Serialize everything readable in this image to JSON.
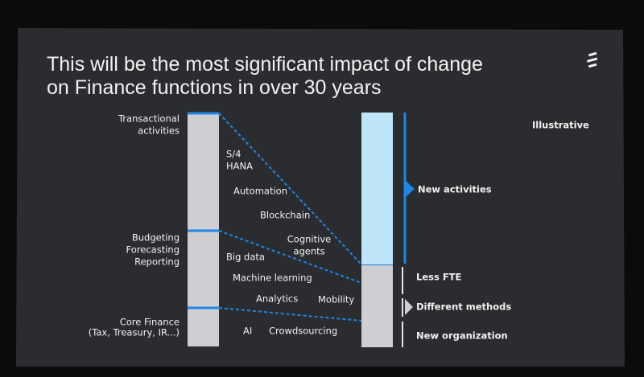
{
  "title": [
    "This will be the most significant impact of change",
    "on Finance functions in over 30 years"
  ],
  "note": "Illustrative",
  "current_areas": [
    {
      "lines": [
        "Transactional",
        "activities"
      ]
    },
    {
      "lines": [
        "Budgeting",
        "Forecasting",
        "Reporting"
      ]
    },
    {
      "lines": [
        "Core Finance",
        "(Tax, Treasury, IR...)"
      ]
    }
  ],
  "drivers": [
    [
      "S/4",
      "HANA"
    ],
    [
      "Automation"
    ],
    [
      "Blockchain"
    ],
    [
      "Cognitive",
      "agents"
    ],
    [
      "Big data"
    ],
    [
      "Machine learning"
    ],
    [
      "Analytics"
    ],
    [
      "Mobility"
    ],
    [
      "AI"
    ],
    [
      "Crowdsourcing"
    ]
  ],
  "outcomes": [
    "New activities",
    "Less FTE",
    "Different methods",
    "New organization"
  ]
}
